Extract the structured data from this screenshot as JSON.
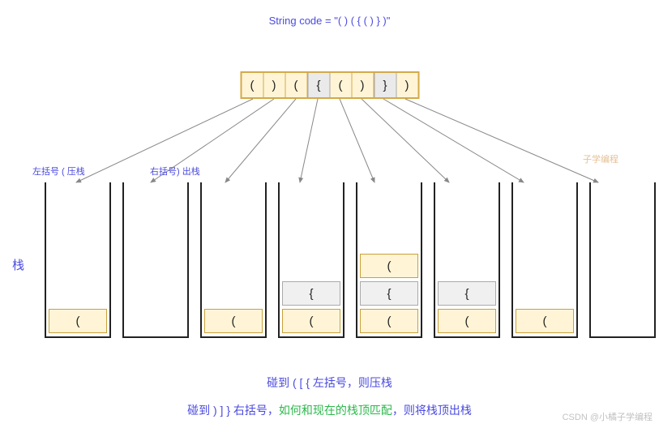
{
  "title": "String code = \"( ) ( { ( ) } )\"",
  "tokens": {
    "cells": [
      {
        "ch": "(",
        "cls": "tc-yellow"
      },
      {
        "ch": ")",
        "cls": "tc-yellow"
      },
      {
        "ch": "(",
        "cls": "tc-yellow"
      },
      {
        "ch": "{",
        "cls": "tc-gray"
      },
      {
        "ch": "(",
        "cls": "tc-yellow"
      },
      {
        "ch": ")",
        "cls": "tc-yellow"
      },
      {
        "ch": "}",
        "cls": "tc-gray"
      },
      {
        "ch": ")",
        "cls": "tc-yellow"
      }
    ]
  },
  "labels": {
    "leftPush": "左括号 ( 压栈",
    "rightPop": "右括号) 出栈",
    "stack": "栈"
  },
  "stacks": [
    {
      "slots": [
        {
          "ch": "(",
          "cls": "slot-yellow"
        }
      ]
    },
    {
      "slots": []
    },
    {
      "slots": [
        {
          "ch": "(",
          "cls": "slot-yellow"
        }
      ]
    },
    {
      "slots": [
        {
          "ch": "{",
          "cls": "slot-gray"
        },
        {
          "ch": "(",
          "cls": "slot-yellow"
        }
      ]
    },
    {
      "slots": [
        {
          "ch": "(",
          "cls": "slot-yellow"
        },
        {
          "ch": "{",
          "cls": "slot-gray"
        },
        {
          "ch": "(",
          "cls": "slot-yellow"
        }
      ]
    },
    {
      "slots": [
        {
          "ch": "{",
          "cls": "slot-gray"
        },
        {
          "ch": "(",
          "cls": "slot-yellow"
        }
      ]
    },
    {
      "slots": [
        {
          "ch": "(",
          "cls": "slot-yellow"
        }
      ]
    },
    {
      "slots": []
    }
  ],
  "bottom": {
    "line1": "碰到 ( [ { 左括号，则压栈",
    "line2a": "碰到 ) ] } 右括号，",
    "line2b": "如何和现在的栈顶匹配",
    "line2c": "，则将栈顶出栈"
  },
  "watermark": "CSDN @小橘子学编程",
  "watermark2": "子学编程",
  "arrows": {
    "stroke": "#888888",
    "tokenY": 122,
    "stackTopY": 225,
    "tokenXs": [
      312,
      338,
      365,
      392,
      419,
      446,
      473,
      500
    ],
    "stackXs": [
      94,
      186,
      278,
      370,
      462,
      554,
      646,
      738
    ]
  }
}
